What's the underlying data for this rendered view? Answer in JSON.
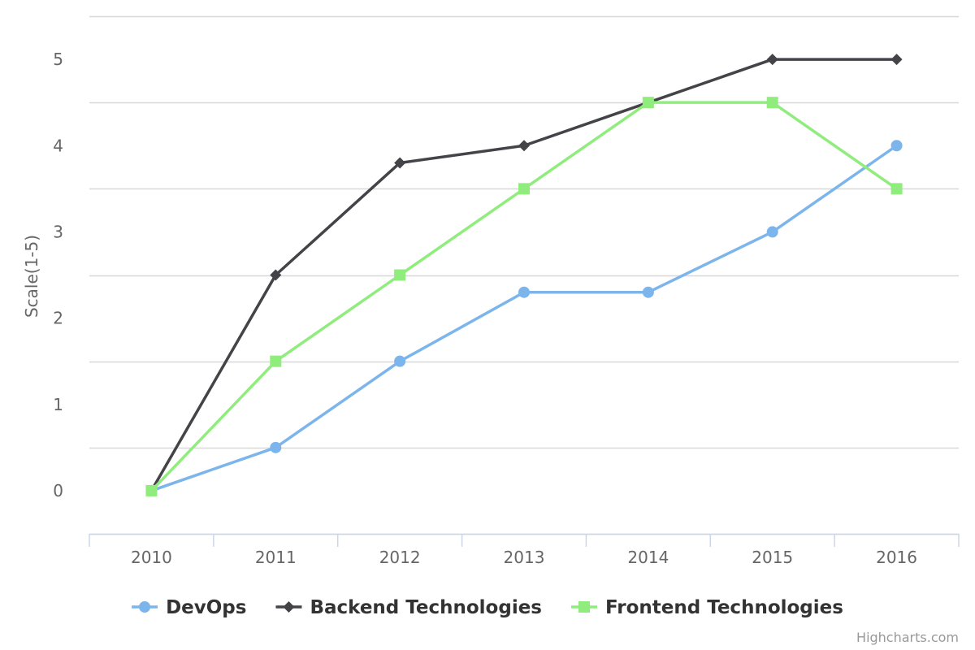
{
  "chart_data": {
    "type": "line",
    "categories": [
      "2010",
      "2011",
      "2012",
      "2013",
      "2014",
      "2015",
      "2016"
    ],
    "ylabel": "Scale(1-5)",
    "xlabel": "",
    "ylim": [
      -0.5,
      5.5
    ],
    "yticks": [
      0,
      1,
      2,
      3,
      4,
      5
    ],
    "grid": true,
    "legend_position": "bottom-center",
    "series": [
      {
        "name": "DevOps",
        "values": [
          0,
          0.5,
          1.5,
          2.3,
          2.3,
          3,
          4
        ],
        "color": "#7cb5ec",
        "marker": "circle"
      },
      {
        "name": "Backend Technologies",
        "values": [
          0,
          2.5,
          3.8,
          4,
          4.5,
          5,
          5
        ],
        "color": "#434348",
        "marker": "diamond"
      },
      {
        "name": "Frontend Technologies",
        "values": [
          0,
          1.5,
          2.5,
          3.5,
          4.5,
          4.5,
          3.5
        ],
        "color": "#90ed7d",
        "marker": "square"
      }
    ]
  },
  "credits": "Highcharts.com"
}
